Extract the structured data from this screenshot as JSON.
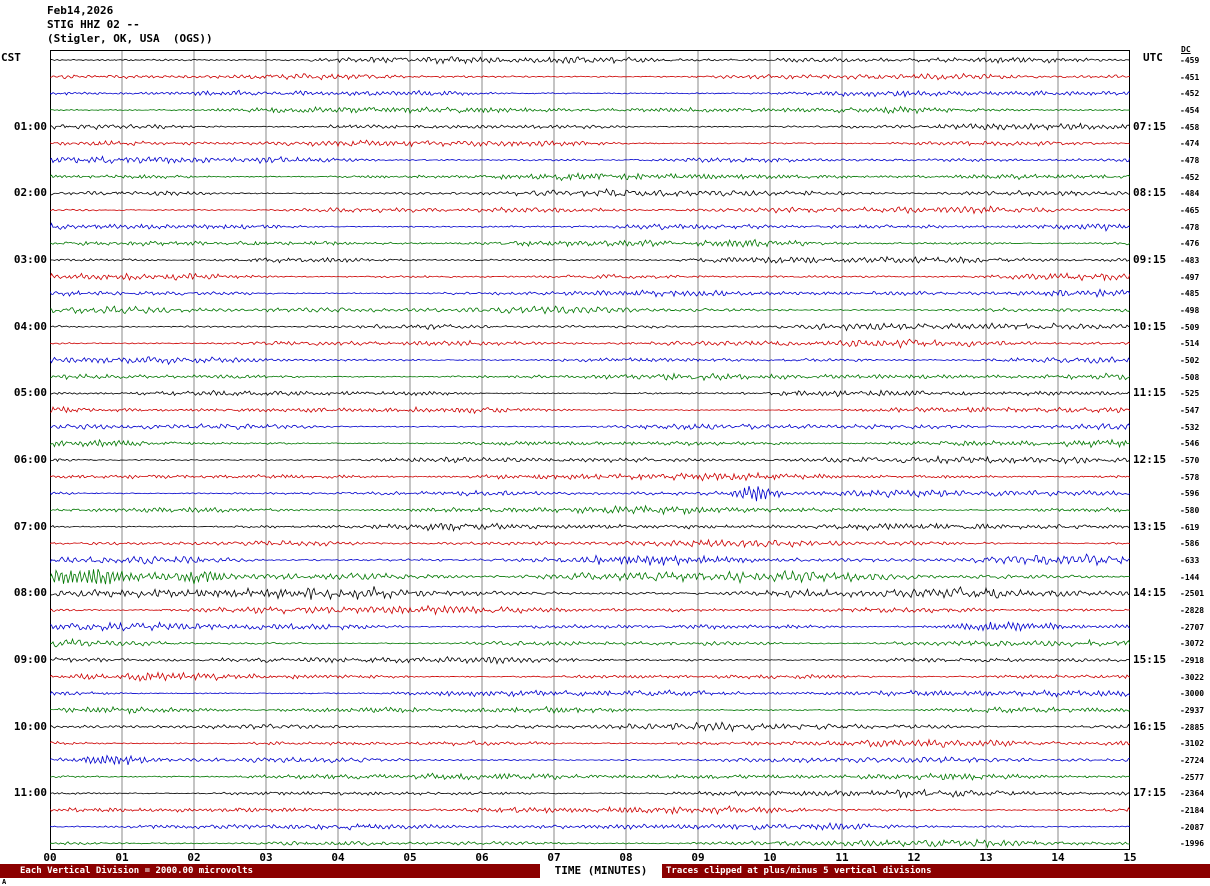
{
  "header": {
    "date": "Feb14,2026",
    "station": "STIG HHZ 02 --",
    "location": "(Stigler, OK, USA  (OGS))"
  },
  "axes": {
    "left_timezone": "CST",
    "right_timezone": "UTC",
    "dc_header": "DC",
    "x_title": "TIME (MINUTES)",
    "minute_labels": [
      "00",
      "01",
      "02",
      "03",
      "04",
      "05",
      "06",
      "07",
      "08",
      "09",
      "10",
      "11",
      "12",
      "13",
      "14",
      "15"
    ]
  },
  "footer": {
    "scale_note": "Each Vertical Division = 2000.00 microvolts",
    "clipping_note": "Traces clipped at plus/minus 5 vertical divisions",
    "corner_mark": "A"
  },
  "chart_data": {
    "type": "line",
    "subtype": "helicorder",
    "xlabel": "TIME (MINUTES)",
    "x_range_minutes": [
      0,
      15
    ],
    "rows_per_hour": 4,
    "grid_color": "#888888",
    "trace_colors": {
      "black": "#000000",
      "red": "#cc0000",
      "blue": "#0000cc",
      "green": "#007700"
    },
    "rows": [
      {
        "cst": "00:00",
        "color": "black",
        "dc": -459
      },
      {
        "cst": "00:15",
        "color": "red",
        "dc": -451
      },
      {
        "cst": "00:30",
        "color": "blue",
        "dc": -452
      },
      {
        "cst": "00:45",
        "color": "green",
        "dc": -454
      },
      {
        "cst": "01:00",
        "color": "black",
        "dc": -458,
        "cst_label": "01:00",
        "utc_label": "07:15"
      },
      {
        "cst": "01:15",
        "color": "red",
        "dc": -474
      },
      {
        "cst": "01:30",
        "color": "blue",
        "dc": -478
      },
      {
        "cst": "01:45",
        "color": "green",
        "dc": -452
      },
      {
        "cst": "02:00",
        "color": "black",
        "dc": -484,
        "cst_label": "02:00",
        "utc_label": "08:15"
      },
      {
        "cst": "02:15",
        "color": "red",
        "dc": -465
      },
      {
        "cst": "02:30",
        "color": "blue",
        "dc": -478
      },
      {
        "cst": "02:45",
        "color": "green",
        "dc": -476
      },
      {
        "cst": "03:00",
        "color": "black",
        "dc": -483,
        "cst_label": "03:00",
        "utc_label": "09:15"
      },
      {
        "cst": "03:15",
        "color": "red",
        "dc": -497
      },
      {
        "cst": "03:30",
        "color": "blue",
        "dc": -485
      },
      {
        "cst": "03:45",
        "color": "green",
        "dc": -498
      },
      {
        "cst": "04:00",
        "color": "black",
        "dc": -509,
        "cst_label": "04:00",
        "utc_label": "10:15"
      },
      {
        "cst": "04:15",
        "color": "red",
        "dc": -514
      },
      {
        "cst": "04:30",
        "color": "blue",
        "dc": -502
      },
      {
        "cst": "04:45",
        "color": "green",
        "dc": -508
      },
      {
        "cst": "05:00",
        "color": "black",
        "dc": -525,
        "cst_label": "05:00",
        "utc_label": "11:15"
      },
      {
        "cst": "05:15",
        "color": "red",
        "dc": -547
      },
      {
        "cst": "05:30",
        "color": "blue",
        "dc": -532
      },
      {
        "cst": "05:45",
        "color": "green",
        "dc": -546
      },
      {
        "cst": "06:00",
        "color": "black",
        "dc": -570,
        "cst_label": "06:00",
        "utc_label": "12:15"
      },
      {
        "cst": "06:15",
        "color": "red",
        "dc": -578
      },
      {
        "cst": "06:30",
        "color": "blue",
        "dc": -596
      },
      {
        "cst": "06:45",
        "color": "green",
        "dc": -580
      },
      {
        "cst": "07:00",
        "color": "black",
        "dc": -619,
        "cst_label": "07:00",
        "utc_label": "13:15"
      },
      {
        "cst": "07:15",
        "color": "red",
        "dc": -586
      },
      {
        "cst": "07:30",
        "color": "blue",
        "dc": -633,
        "amp": 1.35
      },
      {
        "cst": "07:45",
        "color": "green",
        "dc": -144,
        "amp": 1.6
      },
      {
        "cst": "08:00",
        "color": "black",
        "dc": -2501,
        "cst_label": "08:00",
        "utc_label": "14:15",
        "amp": 1.8
      },
      {
        "cst": "08:15",
        "color": "red",
        "dc": -2828,
        "amp": 1.15
      },
      {
        "cst": "08:30",
        "color": "blue",
        "dc": -2707,
        "amp": 1.1
      },
      {
        "cst": "08:45",
        "color": "green",
        "dc": -3072
      },
      {
        "cst": "09:00",
        "color": "black",
        "dc": -2918,
        "cst_label": "09:00",
        "utc_label": "15:15"
      },
      {
        "cst": "09:15",
        "color": "red",
        "dc": -3022
      },
      {
        "cst": "09:30",
        "color": "blue",
        "dc": -3000
      },
      {
        "cst": "09:45",
        "color": "green",
        "dc": -2937
      },
      {
        "cst": "10:00",
        "color": "black",
        "dc": -2885,
        "cst_label": "10:00",
        "utc_label": "16:15"
      },
      {
        "cst": "10:15",
        "color": "red",
        "dc": -3102
      },
      {
        "cst": "10:30",
        "color": "blue",
        "dc": -2724
      },
      {
        "cst": "10:45",
        "color": "green",
        "dc": -2577
      },
      {
        "cst": "11:00",
        "color": "black",
        "dc": -2364,
        "cst_label": "11:00",
        "utc_label": "17:15"
      },
      {
        "cst": "11:15",
        "color": "red",
        "dc": -2184
      },
      {
        "cst": "11:30",
        "color": "blue",
        "dc": -2087
      },
      {
        "cst": "11:45",
        "color": "green",
        "dc": -1996
      }
    ],
    "events": [
      {
        "row": 26,
        "minute": 9.8,
        "width_min": 0.6,
        "amp": 3.2
      },
      {
        "row": 30,
        "minute": 8.5,
        "width_min": 3.0,
        "amp": 1.2
      },
      {
        "row": 31,
        "minute": 0.5,
        "width_min": 1.4,
        "amp": 3.0
      },
      {
        "row": 31,
        "minute": 2.1,
        "width_min": 0.6,
        "amp": 2.4
      },
      {
        "row": 32,
        "minute": 3.0,
        "width_min": 4.0,
        "amp": 1.2
      },
      {
        "row": 34,
        "minute": 13.3,
        "width_min": 1.5,
        "amp": 1.6
      },
      {
        "row": 42,
        "minute": 0.8,
        "width_min": 1.0,
        "amp": 1.6
      }
    ]
  }
}
